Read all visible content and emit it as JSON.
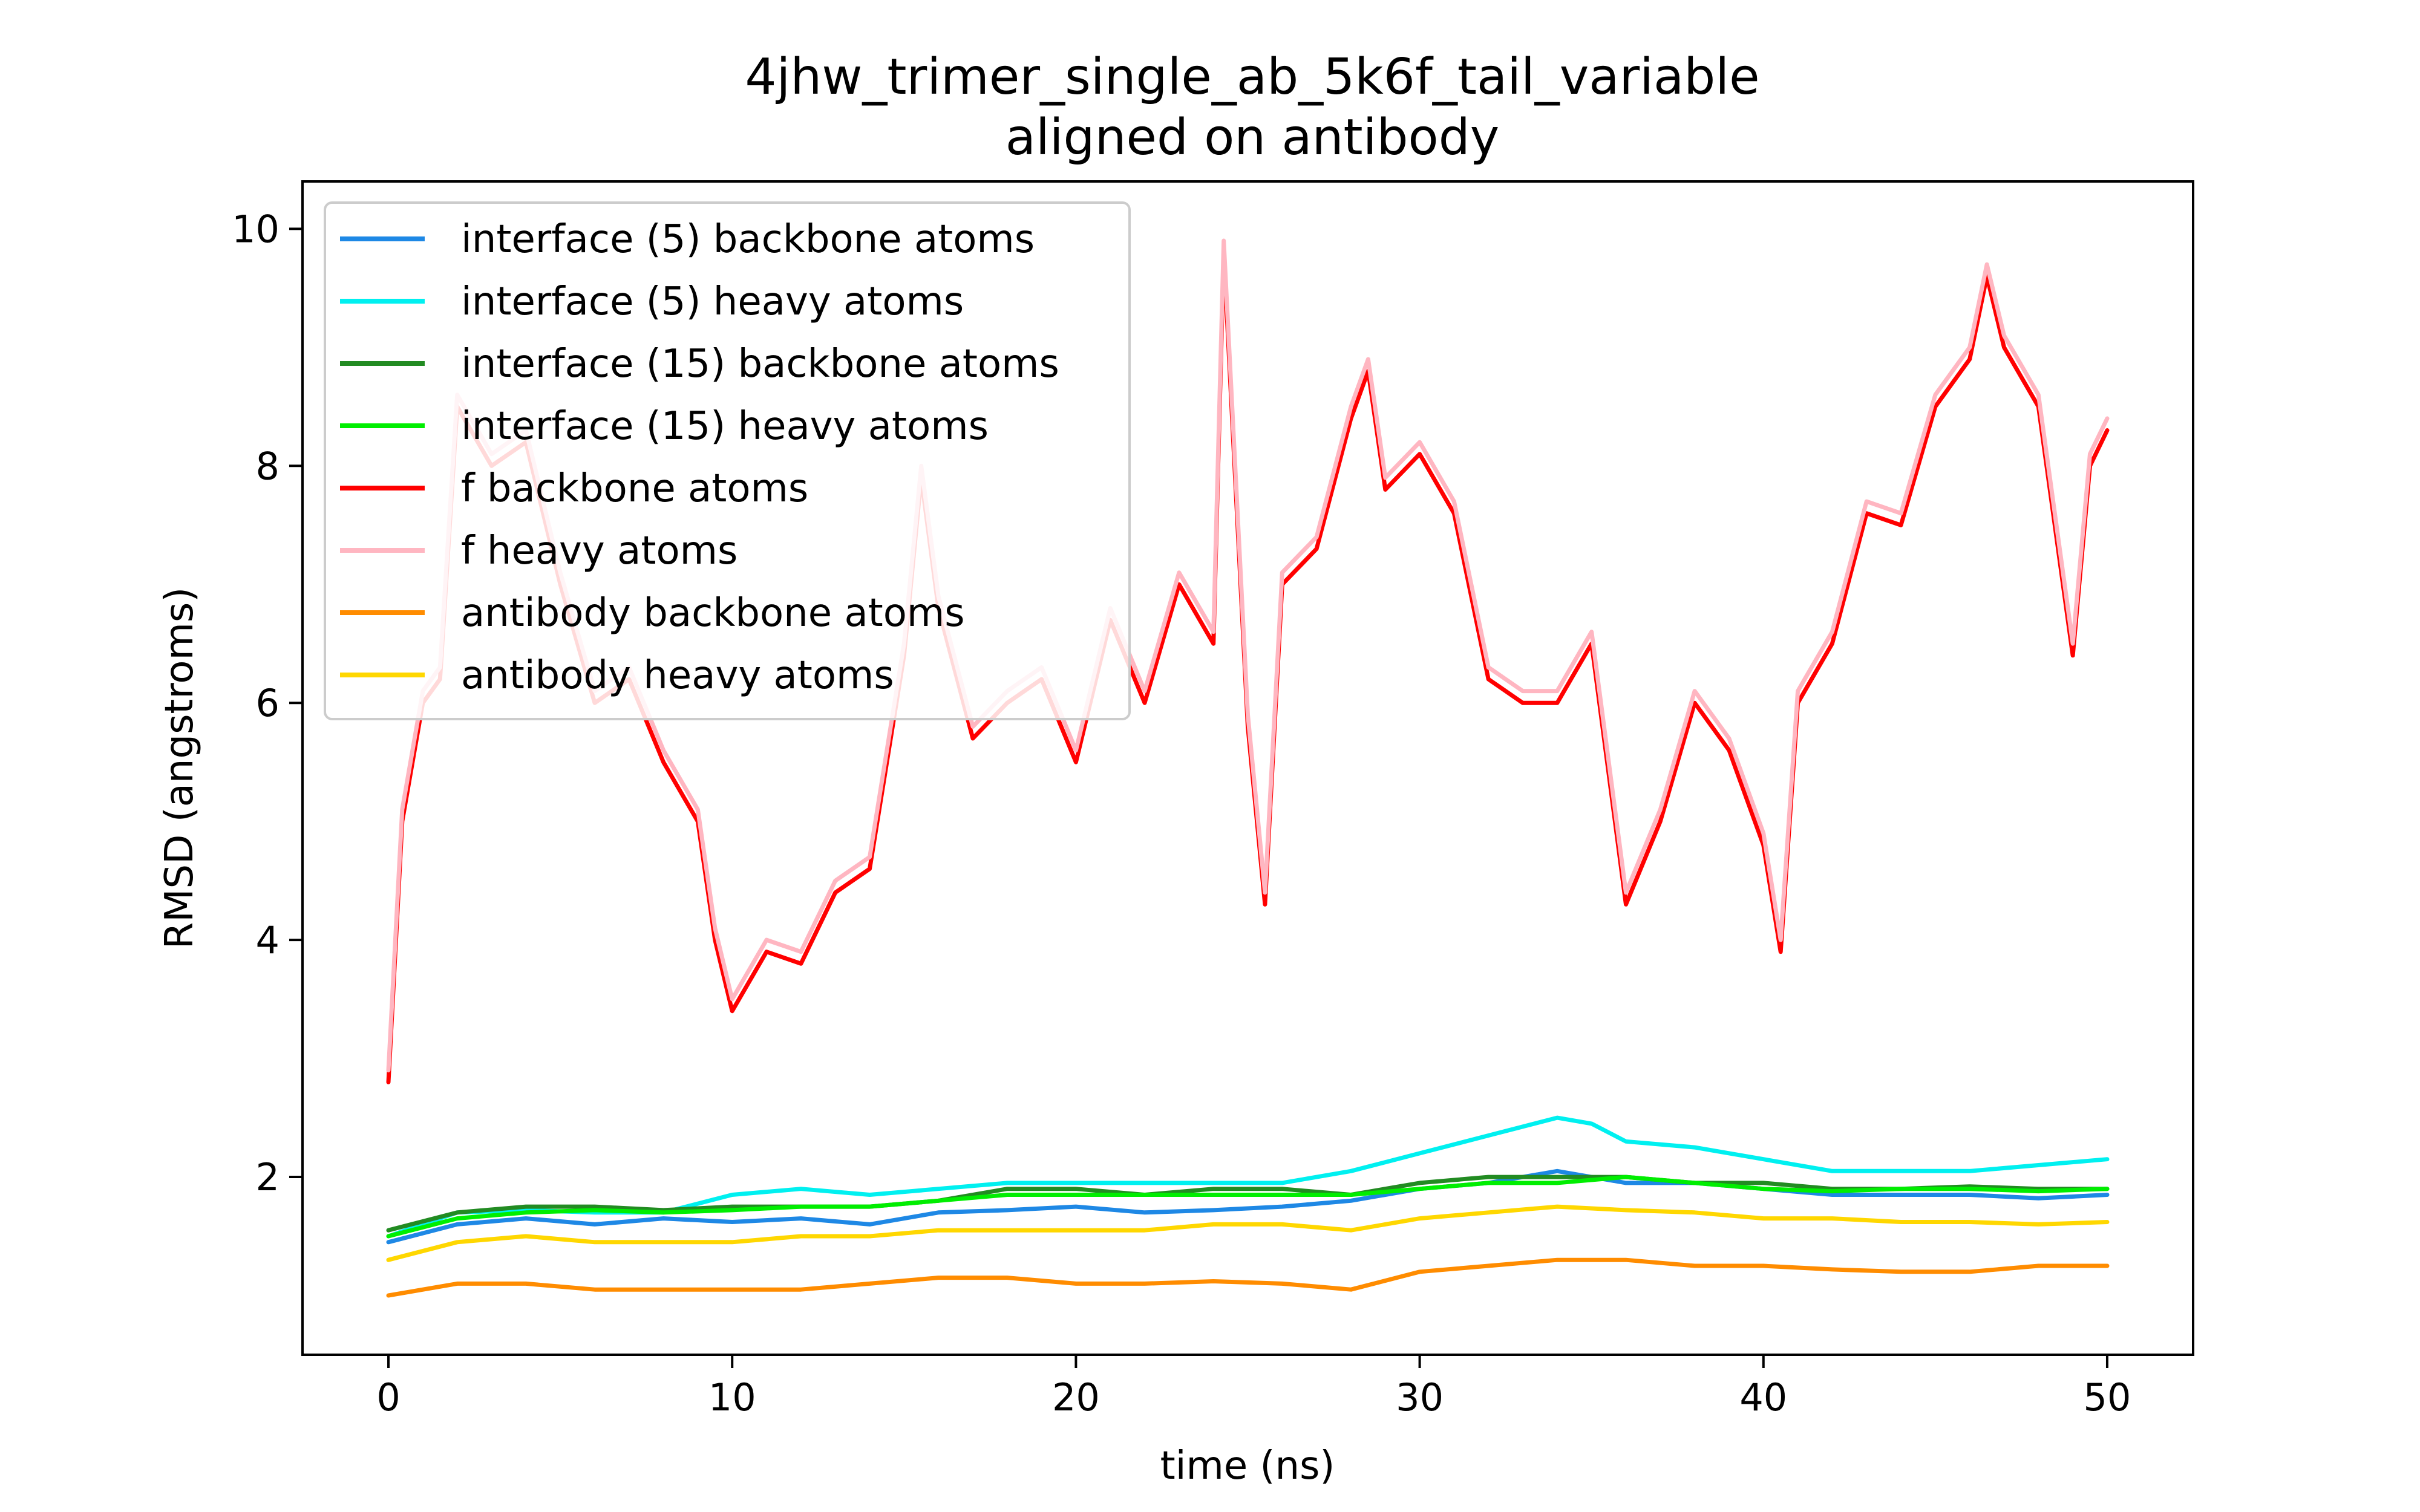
{
  "chart_data": {
    "type": "line",
    "title": "4jhw_trimer_single_ab_5k6f_tail_variable",
    "subtitle": "aligned on antibody",
    "xlabel": "time (ns)",
    "ylabel": "RMSD (angstroms)",
    "xlim": [
      -2.5,
      52.5
    ],
    "ylim": [
      0.5,
      10.4
    ],
    "xticks": [
      "0",
      "10",
      "20",
      "30",
      "40",
      "50"
    ],
    "yticks": [
      "2",
      "4",
      "6",
      "8",
      "10"
    ],
    "grid": false,
    "legend_position": "upper-left",
    "series": [
      {
        "name": "interface (5) backbone atoms",
        "color": "#1e88e5",
        "x": [
          0,
          2,
          4,
          6,
          8,
          10,
          12,
          14,
          16,
          18,
          20,
          22,
          24,
          26,
          28,
          30,
          32,
          34,
          36,
          38,
          40,
          42,
          44,
          46,
          48,
          50
        ],
        "y": [
          1.45,
          1.6,
          1.65,
          1.6,
          1.65,
          1.62,
          1.65,
          1.6,
          1.7,
          1.72,
          1.75,
          1.7,
          1.72,
          1.75,
          1.8,
          1.9,
          1.95,
          2.05,
          1.95,
          1.95,
          1.9,
          1.85,
          1.85,
          1.85,
          1.82,
          1.85
        ]
      },
      {
        "name": "interface (5) heavy atoms",
        "color": "#00f0f0",
        "x": [
          0,
          2,
          4,
          6,
          8,
          10,
          12,
          14,
          16,
          18,
          20,
          22,
          24,
          26,
          28,
          30,
          32,
          34,
          35,
          36,
          38,
          40,
          42,
          44,
          46,
          48,
          50
        ],
        "y": [
          1.5,
          1.7,
          1.72,
          1.7,
          1.7,
          1.85,
          1.9,
          1.85,
          1.9,
          1.95,
          1.95,
          1.95,
          1.95,
          1.95,
          2.05,
          2.2,
          2.35,
          2.5,
          2.45,
          2.3,
          2.25,
          2.15,
          2.05,
          2.05,
          2.05,
          2.1,
          2.15
        ]
      },
      {
        "name": "interface (15) backbone atoms",
        "color": "#228b22",
        "x": [
          0,
          2,
          4,
          6,
          8,
          10,
          12,
          14,
          16,
          18,
          20,
          22,
          24,
          26,
          28,
          30,
          32,
          34,
          36,
          38,
          40,
          42,
          44,
          46,
          48,
          50
        ],
        "y": [
          1.55,
          1.7,
          1.75,
          1.75,
          1.72,
          1.75,
          1.75,
          1.75,
          1.8,
          1.9,
          1.9,
          1.85,
          1.9,
          1.9,
          1.85,
          1.95,
          2.0,
          2.0,
          2.0,
          1.95,
          1.95,
          1.9,
          1.9,
          1.92,
          1.9,
          1.9
        ]
      },
      {
        "name": "interface (15) heavy atoms",
        "color": "#00ee00",
        "x": [
          0,
          2,
          4,
          6,
          8,
          10,
          12,
          14,
          16,
          18,
          20,
          22,
          24,
          26,
          28,
          30,
          32,
          34,
          36,
          38,
          40,
          42,
          44,
          46,
          48,
          50
        ],
        "y": [
          1.5,
          1.65,
          1.7,
          1.72,
          1.7,
          1.72,
          1.75,
          1.75,
          1.8,
          1.85,
          1.85,
          1.85,
          1.85,
          1.85,
          1.85,
          1.9,
          1.95,
          1.95,
          2.0,
          1.95,
          1.9,
          1.88,
          1.9,
          1.9,
          1.88,
          1.9
        ]
      },
      {
        "name": "f backbone atoms",
        "color": "#ff0000",
        "x": [
          0,
          0.4,
          1,
          1.5,
          2,
          3,
          4,
          5,
          6,
          7,
          8,
          9,
          9.5,
          10,
          11,
          12,
          13,
          14,
          15,
          15.5,
          16,
          17,
          18,
          19,
          20,
          21,
          22,
          23,
          24,
          24.3,
          25,
          25.5,
          26,
          27,
          28,
          28.5,
          29,
          30,
          31,
          32,
          33,
          34,
          35,
          36,
          37,
          38,
          39,
          40,
          40.5,
          41,
          42,
          43,
          44,
          45,
          46,
          46.5,
          47,
          48,
          49,
          49.5,
          50
        ],
        "y": [
          2.8,
          5.0,
          6.0,
          6.2,
          8.5,
          8.0,
          8.2,
          7.0,
          6.0,
          6.2,
          5.5,
          5.0,
          4.0,
          3.4,
          3.9,
          3.8,
          4.4,
          4.6,
          6.4,
          7.9,
          6.8,
          5.7,
          6.0,
          6.2,
          5.5,
          6.7,
          6.0,
          7.0,
          6.5,
          9.8,
          5.8,
          4.3,
          7.0,
          7.3,
          8.4,
          8.8,
          7.8,
          8.1,
          7.6,
          6.2,
          6.0,
          6.0,
          6.5,
          4.3,
          5.0,
          6.0,
          5.6,
          4.8,
          3.9,
          6.0,
          6.5,
          7.6,
          7.5,
          8.5,
          8.9,
          9.6,
          9.0,
          8.5,
          6.4,
          8.0,
          8.3
        ]
      },
      {
        "name": "f heavy atoms",
        "color": "#ffb6c1",
        "x": [
          0,
          0.4,
          1,
          1.5,
          2,
          3,
          4,
          5,
          6,
          7,
          8,
          9,
          9.5,
          10,
          11,
          12,
          13,
          14,
          15,
          15.5,
          16,
          17,
          18,
          19,
          20,
          21,
          22,
          23,
          24,
          24.3,
          25,
          25.5,
          26,
          27,
          28,
          28.5,
          29,
          30,
          31,
          32,
          33,
          34,
          35,
          36,
          37,
          38,
          39,
          40,
          40.5,
          41,
          42,
          43,
          44,
          45,
          46,
          46.5,
          47,
          48,
          49,
          49.5,
          50
        ],
        "y": [
          2.9,
          5.1,
          6.1,
          6.3,
          8.6,
          8.1,
          8.3,
          7.1,
          6.1,
          6.3,
          5.6,
          5.1,
          4.1,
          3.5,
          4.0,
          3.9,
          4.5,
          4.7,
          6.5,
          8.0,
          6.9,
          5.8,
          6.1,
          6.3,
          5.6,
          6.8,
          6.1,
          7.1,
          6.6,
          9.9,
          5.9,
          4.4,
          7.1,
          7.4,
          8.5,
          8.9,
          7.9,
          8.2,
          7.7,
          6.3,
          6.1,
          6.1,
          6.6,
          4.4,
          5.1,
          6.1,
          5.7,
          4.9,
          4.0,
          6.1,
          6.6,
          7.7,
          7.6,
          8.6,
          9.0,
          9.7,
          9.1,
          8.6,
          6.5,
          8.1,
          8.4
        ]
      },
      {
        "name": "antibody backbone atoms",
        "color": "#ff8c00",
        "x": [
          0,
          2,
          4,
          6,
          8,
          10,
          12,
          14,
          16,
          18,
          20,
          22,
          24,
          26,
          28,
          30,
          32,
          34,
          36,
          38,
          40,
          42,
          44,
          46,
          48,
          50
        ],
        "y": [
          1.0,
          1.1,
          1.1,
          1.05,
          1.05,
          1.05,
          1.05,
          1.1,
          1.15,
          1.15,
          1.1,
          1.1,
          1.12,
          1.1,
          1.05,
          1.2,
          1.25,
          1.3,
          1.3,
          1.25,
          1.25,
          1.22,
          1.2,
          1.2,
          1.25,
          1.25
        ]
      },
      {
        "name": "antibody heavy atoms",
        "color": "#ffd700",
        "x": [
          0,
          2,
          4,
          6,
          8,
          10,
          12,
          14,
          16,
          18,
          20,
          22,
          24,
          26,
          28,
          30,
          32,
          34,
          36,
          38,
          40,
          42,
          44,
          46,
          48,
          50
        ],
        "y": [
          1.3,
          1.45,
          1.5,
          1.45,
          1.45,
          1.45,
          1.5,
          1.5,
          1.55,
          1.55,
          1.55,
          1.55,
          1.6,
          1.6,
          1.55,
          1.65,
          1.7,
          1.75,
          1.72,
          1.7,
          1.65,
          1.65,
          1.62,
          1.62,
          1.6,
          1.62
        ]
      }
    ]
  }
}
